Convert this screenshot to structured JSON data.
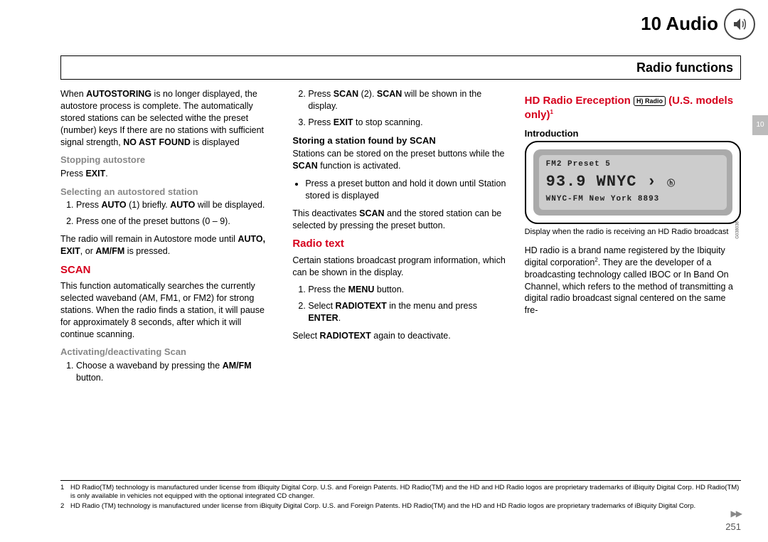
{
  "header": {
    "chapter_num": "10",
    "chapter_title": "Audio",
    "section_title": "Radio functions",
    "margin_tab": "10",
    "page_num": "251"
  },
  "column1": {
    "intro_para": "When <b>AUTOSTORING</b> is no longer displayed, the autostore process is complete. The automatically stored stations can be selected withe the preset (number) keys If there are no stations with sufficient signal strength, <b>NO AST FOUND</b> is displayed",
    "stopping_heading": "Stopping autostore",
    "stopping_body": "Press <b>EXIT</b>.",
    "selecting_heading": "Selecting an autostored station",
    "selecting_item1": "Press <b>AUTO</b> (1) briefly. <b>AUTO</b> will be displayed.",
    "selecting_item2": "Press one of the preset buttons (0 – 9).",
    "selecting_after": "The radio will remain in Autostore mode until <b>AUTO, EXIT</b>, or <b>AM/FM</b> is pressed.",
    "scan_heading": "SCAN",
    "scan_body": "This function automatically searches the currently selected waveband (AM, FM1, or FM2) for strong stations. When the radio finds a station, it will pause for approximately 8 seconds, after which it will continue scanning.",
    "activate_heading": "Activating/deactivating Scan",
    "activate_item1": "Choose a waveband by pressing the <b>AM/FM</b> button."
  },
  "column2": {
    "activate_item2": "Press <b>SCAN</b> (2). <b>SCAN</b> will be shown in the display.",
    "activate_item3": "Press <b>EXIT</b> to stop scanning.",
    "storing_heading": "Storing a station found by SCAN",
    "storing_intro": "Stations can be stored on the preset buttons while the <b>SCAN</b> function is activated.",
    "storing_bullet": "Press a preset button and hold it down until Station stored is displayed",
    "storing_after": "This deactivates <b>SCAN</b> and the stored station can be selected by pressing the preset button.",
    "radiotext_heading": "Radio text",
    "radiotext_intro": "Certain stations broadcast program information, which can be shown in the display.",
    "radiotext_item1": "Press the <b>MENU</b> button.",
    "radiotext_item2": "Select <b>RADIOTEXT</b> in the menu and press <b>ENTER</b>.",
    "radiotext_after": "Select <b>RADIOTEXT</b> again to deactivate."
  },
  "column3": {
    "hd_heading_pre": "HD Radio Ereception ",
    "hd_heading_logo": "H) Radio",
    "hd_heading_post": " (U.S. models only)",
    "intro_heading": "Introduction",
    "display_line1": "FM2 Preset 5",
    "display_line2": "93.9 WNYC ›",
    "display_line2_hd": "ⓗ",
    "display_line3": "WNYC-FM New York 8893",
    "display_code": "G038036",
    "caption": "Display when the radio is receiving an HD Radio broadcast",
    "hd_body": "HD radio is a brand name registered by the Ibiquity digital corporation<sup>2</sup>. They are the developer of a broadcasting technology called IBOC or In Band On Channel, which refers to the method of transmitting a digital radio broadcast signal centered on the same fre-"
  },
  "footnotes": {
    "fn1_num": "1",
    "fn1_text": "HD Radio(TM) technology is manufactured under license from iBiquity Digital Corp. U.S. and Foreign Patents. HD Radio(TM) and the HD and HD Radio logos are proprietary trademarks of iBiquity Digital Corp. HD Radio(TM) is only available in vehicles not equipped with the optional integrated CD changer.",
    "fn2_num": "2",
    "fn2_text": "HD Radio (TM) technology is manufactured under license from iBiquity Digital Corp. U.S. and Foreign Patents. HD Radio(TM) and the HD and HD Radio logos are proprietary trademarks of iBiquity Digital Corp."
  }
}
